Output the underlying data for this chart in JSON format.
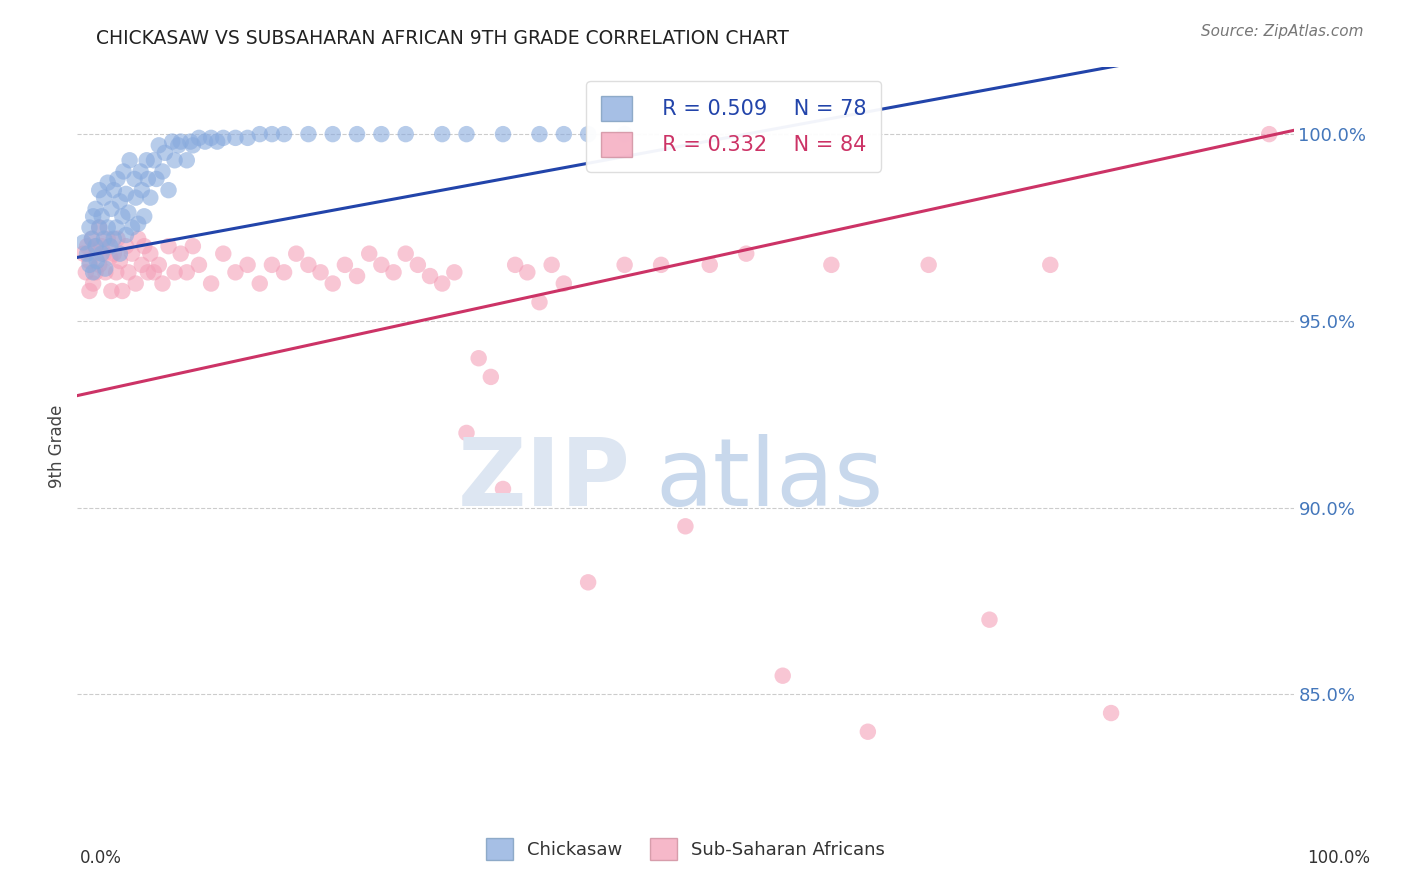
{
  "title": "CHICKASAW VS SUBSAHARAN AFRICAN 9TH GRADE CORRELATION CHART",
  "source": "Source: ZipAtlas.com",
  "ylabel": "9th Grade",
  "ytick_labels": [
    "85.0%",
    "90.0%",
    "95.0%",
    "100.0%"
  ],
  "ytick_values": [
    0.85,
    0.9,
    0.95,
    1.0
  ],
  "xlim": [
    0.0,
    1.0
  ],
  "ylim": [
    0.815,
    1.018
  ],
  "blue_dot_color": "#88AADD",
  "pink_dot_color": "#F4A0B8",
  "blue_line_color": "#2244AA",
  "pink_line_color": "#CC3366",
  "R_blue": 0.509,
  "N_blue": 78,
  "R_pink": 0.332,
  "N_pink": 84,
  "legend_label_blue": "Chickasaw",
  "legend_label_pink": "Sub-Saharan Africans",
  "blue_line_x0": 0.0,
  "blue_line_y0": 0.967,
  "blue_line_x1": 0.55,
  "blue_line_y1": 1.0,
  "pink_line_x0": 0.0,
  "pink_line_y0": 0.93,
  "pink_line_x1": 1.0,
  "pink_line_y1": 1.001,
  "blue_x": [
    0.005,
    0.008,
    0.01,
    0.01,
    0.012,
    0.013,
    0.013,
    0.015,
    0.015,
    0.016,
    0.018,
    0.018,
    0.02,
    0.02,
    0.022,
    0.022,
    0.023,
    0.025,
    0.025,
    0.027,
    0.028,
    0.03,
    0.03,
    0.032,
    0.033,
    0.035,
    0.035,
    0.037,
    0.038,
    0.04,
    0.04,
    0.042,
    0.043,
    0.045,
    0.047,
    0.048,
    0.05,
    0.052,
    0.053,
    0.055,
    0.057,
    0.058,
    0.06,
    0.063,
    0.065,
    0.067,
    0.07,
    0.072,
    0.075,
    0.078,
    0.08,
    0.083,
    0.085,
    0.09,
    0.093,
    0.095,
    0.1,
    0.105,
    0.11,
    0.115,
    0.12,
    0.13,
    0.14,
    0.15,
    0.16,
    0.17,
    0.19,
    0.21,
    0.23,
    0.25,
    0.27,
    0.3,
    0.32,
    0.35,
    0.38,
    0.4,
    0.42,
    0.45
  ],
  "blue_y": [
    0.971,
    0.968,
    0.975,
    0.965,
    0.972,
    0.978,
    0.963,
    0.97,
    0.98,
    0.966,
    0.975,
    0.985,
    0.968,
    0.978,
    0.972,
    0.983,
    0.964,
    0.975,
    0.987,
    0.97,
    0.98,
    0.972,
    0.985,
    0.975,
    0.988,
    0.968,
    0.982,
    0.978,
    0.99,
    0.973,
    0.984,
    0.979,
    0.993,
    0.975,
    0.988,
    0.983,
    0.976,
    0.99,
    0.985,
    0.978,
    0.993,
    0.988,
    0.983,
    0.993,
    0.988,
    0.997,
    0.99,
    0.995,
    0.985,
    0.998,
    0.993,
    0.997,
    0.998,
    0.993,
    0.998,
    0.997,
    0.999,
    0.998,
    0.999,
    0.998,
    0.999,
    0.999,
    0.999,
    1.0,
    1.0,
    1.0,
    1.0,
    1.0,
    1.0,
    1.0,
    1.0,
    1.0,
    1.0,
    1.0,
    1.0,
    1.0,
    1.0,
    1.0
  ],
  "pink_x": [
    0.005,
    0.007,
    0.008,
    0.01,
    0.01,
    0.012,
    0.013,
    0.015,
    0.015,
    0.018,
    0.018,
    0.02,
    0.022,
    0.023,
    0.025,
    0.027,
    0.028,
    0.03,
    0.032,
    0.033,
    0.035,
    0.037,
    0.04,
    0.042,
    0.045,
    0.048,
    0.05,
    0.053,
    0.055,
    0.058,
    0.06,
    0.063,
    0.067,
    0.07,
    0.075,
    0.08,
    0.085,
    0.09,
    0.095,
    0.1,
    0.11,
    0.12,
    0.13,
    0.14,
    0.15,
    0.16,
    0.17,
    0.18,
    0.19,
    0.2,
    0.21,
    0.22,
    0.23,
    0.24,
    0.25,
    0.26,
    0.27,
    0.28,
    0.29,
    0.3,
    0.31,
    0.32,
    0.33,
    0.34,
    0.35,
    0.36,
    0.37,
    0.38,
    0.39,
    0.4,
    0.42,
    0.45,
    0.48,
    0.5,
    0.52,
    0.55,
    0.58,
    0.62,
    0.65,
    0.7,
    0.75,
    0.8,
    0.85,
    0.98
  ],
  "pink_y": [
    0.968,
    0.963,
    0.97,
    0.966,
    0.958,
    0.972,
    0.96,
    0.97,
    0.963,
    0.975,
    0.965,
    0.97,
    0.968,
    0.963,
    0.972,
    0.967,
    0.958,
    0.968,
    0.963,
    0.972,
    0.966,
    0.958,
    0.97,
    0.963,
    0.968,
    0.96,
    0.972,
    0.965,
    0.97,
    0.963,
    0.968,
    0.963,
    0.965,
    0.96,
    0.97,
    0.963,
    0.968,
    0.963,
    0.97,
    0.965,
    0.96,
    0.968,
    0.963,
    0.965,
    0.96,
    0.965,
    0.963,
    0.968,
    0.965,
    0.963,
    0.96,
    0.965,
    0.962,
    0.968,
    0.965,
    0.963,
    0.968,
    0.965,
    0.962,
    0.96,
    0.963,
    0.92,
    0.94,
    0.935,
    0.905,
    0.965,
    0.963,
    0.955,
    0.965,
    0.96,
    0.88,
    0.965,
    0.965,
    0.895,
    0.965,
    0.968,
    0.855,
    0.965,
    0.84,
    0.965,
    0.87,
    0.965,
    0.845,
    1.0
  ]
}
